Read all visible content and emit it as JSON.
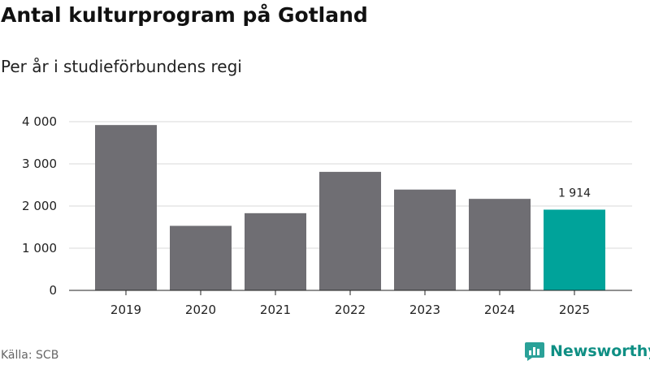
{
  "chart_data": {
    "type": "bar",
    "title": "Antal kulturprogram på Gotland",
    "subtitle": "Per år i studieförbundens regi",
    "categories": [
      "2019",
      "2020",
      "2021",
      "2022",
      "2023",
      "2024",
      "2025"
    ],
    "values": [
      3920,
      1530,
      1830,
      2810,
      2390,
      2170,
      1914
    ],
    "ylim": [
      0,
      4000
    ],
    "yticks": [
      0,
      1000,
      2000,
      3000,
      4000
    ],
    "ytick_labels": [
      "0",
      "1 000",
      "2 000",
      "3 000",
      "4 000"
    ],
    "highlight_index": 6,
    "highlight_label": "1 914",
    "xlabel": "",
    "ylabel": "",
    "grid": true,
    "colors": {
      "bar": "#6f6e73",
      "highlight": "#00a39a",
      "grid": "#d9d9d9",
      "axis": "#222222"
    }
  },
  "footer": {
    "source": "Källa: SCB",
    "brand": "Newsworthy",
    "brand_color": "#0f8f84",
    "brand_icon": "newsworthy-logo-icon"
  }
}
